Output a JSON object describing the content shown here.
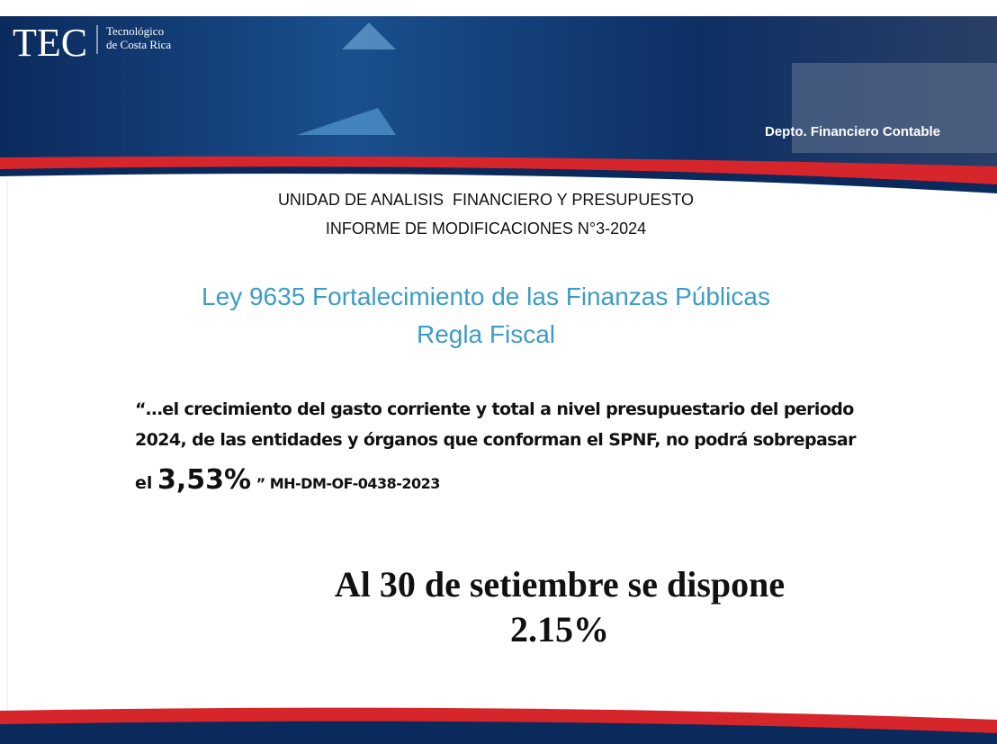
{
  "header": {
    "logo": "TEC",
    "institution_line1": "Tecnológico",
    "institution_line2": "de Costa Rica",
    "department": "Depto. Financiero Contable"
  },
  "slide": {
    "title_line1": "UNIDAD DE ANALISIS  FINANCIERO Y PRESUPUESTO",
    "title_line2": "INFORME DE MODIFICACIONES N°3-2024",
    "law_line1": "Ley 9635 Fortalecimiento de las Finanzas Públicas",
    "law_line2": "Regla Fiscal",
    "quote_line1": "“…el crecimiento del gasto corriente y total a nivel presupuestario del periodo",
    "quote_line2": "2024, de las entidades y órganos que conforman el SPNF, no podrá sobrepasar",
    "quote_line3_prefix": "el",
    "quote_line3_value": "3,53%",
    "quote_line3_suffix": "” MH-DM-OF-0438-2023",
    "status_line1": "Al 30 de setiembre se dispone",
    "status_line2": "2.15%"
  }
}
